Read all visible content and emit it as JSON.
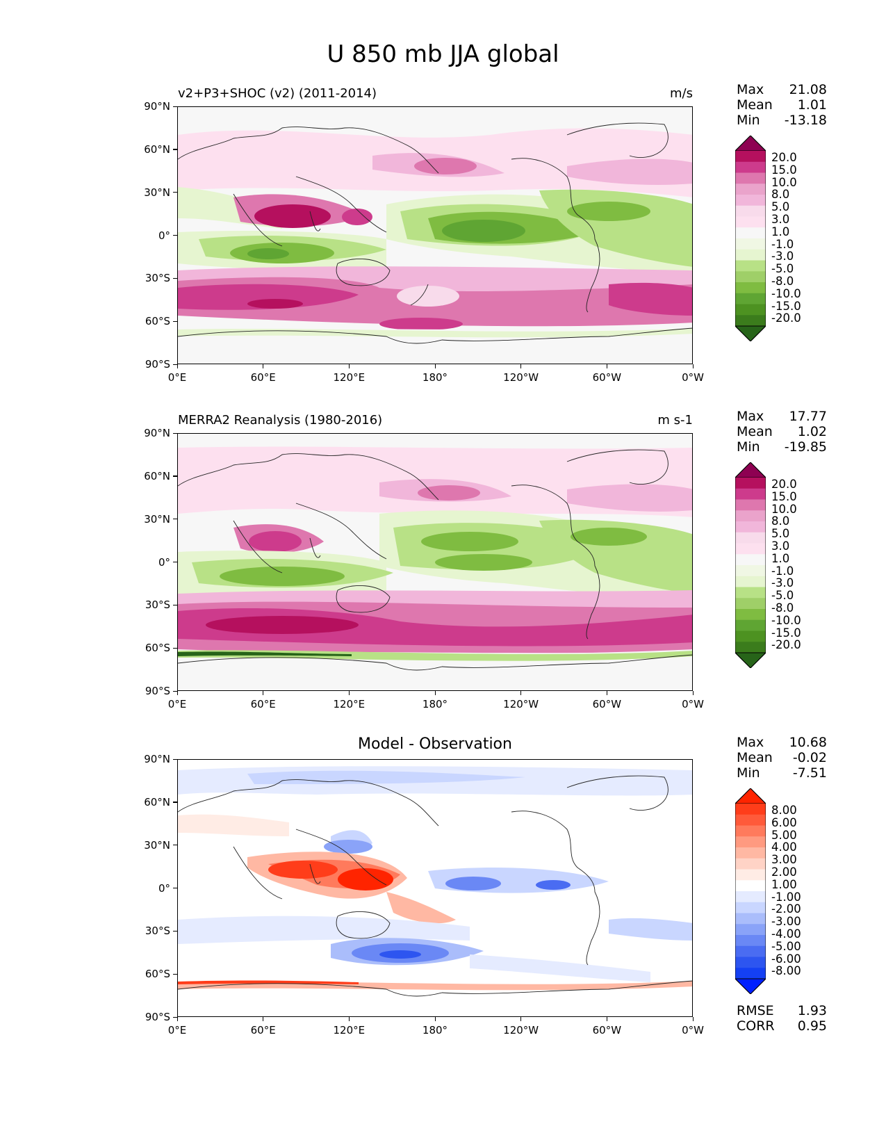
{
  "figure": {
    "title": "U 850 mb JJA global",
    "colors": {
      "border": "#000000",
      "coast": "#222222"
    }
  },
  "axes": {
    "lat_labels": [
      "90°N",
      "60°N",
      "30°N",
      "0°",
      "30°S",
      "60°S",
      "90°S"
    ],
    "lon_labels": [
      "0°E",
      "60°E",
      "120°E",
      "180°",
      "120°W",
      "60°W",
      "0°W"
    ]
  },
  "panels": [
    {
      "id": "test",
      "title": "v2+P3+SHOC (v2) (2011-2014)",
      "units": "m/s",
      "stats": [
        {
          "label": "Max",
          "value": "21.08"
        },
        {
          "label": "Mean",
          "value": "1.01"
        },
        {
          "label": "Min",
          "value": "-13.18"
        }
      ],
      "colorbar": {
        "labels": [
          "20.0",
          "15.0",
          "10.0",
          "8.0",
          "5.0",
          "3.0",
          "1.0",
          "-1.0",
          "-3.0",
          "-5.0",
          "-8.0",
          "-10.0",
          "-15.0",
          "-20.0"
        ],
        "colors": [
          "#8e0152",
          "#b5105e",
          "#cd3b8c",
          "#de77ae",
          "#eaa3cb",
          "#f1b6da",
          "#f8dbeb",
          "#fde0ef",
          "#f7f7f7",
          "#f0f7e4",
          "#e6f5d0",
          "#b8e186",
          "#9fcf68",
          "#7fbc41",
          "#5fa533",
          "#4d9221",
          "#3b7c1c",
          "#276419"
        ]
      },
      "footer": []
    },
    {
      "id": "ref",
      "title": "MERRA2 Reanalysis (1980-2016)",
      "units": "m s-1",
      "stats": [
        {
          "label": "Max",
          "value": "17.77"
        },
        {
          "label": "Mean",
          "value": "1.02"
        },
        {
          "label": "Min",
          "value": "-19.85"
        }
      ],
      "colorbar": {
        "labels": [
          "20.0",
          "15.0",
          "10.0",
          "8.0",
          "5.0",
          "3.0",
          "1.0",
          "-1.0",
          "-3.0",
          "-5.0",
          "-8.0",
          "-10.0",
          "-15.0",
          "-20.0"
        ],
        "colors": [
          "#8e0152",
          "#b5105e",
          "#cd3b8c",
          "#de77ae",
          "#eaa3cb",
          "#f1b6da",
          "#f8dbeb",
          "#fde0ef",
          "#f7f7f7",
          "#f0f7e4",
          "#e6f5d0",
          "#b8e186",
          "#9fcf68",
          "#7fbc41",
          "#5fa533",
          "#4d9221",
          "#3b7c1c",
          "#276419"
        ]
      },
      "footer": []
    },
    {
      "id": "diff",
      "title": "Model - Observation",
      "units": "",
      "stats": [
        {
          "label": "Max",
          "value": "10.68"
        },
        {
          "label": "Mean",
          "value": "-0.02"
        },
        {
          "label": "Min",
          "value": "-7.51"
        }
      ],
      "colorbar": {
        "labels": [
          "8.00",
          "6.00",
          "5.00",
          "4.00",
          "3.00",
          "2.00",
          "1.00",
          "-1.00",
          "-2.00",
          "-3.00",
          "-4.00",
          "-5.00",
          "-6.00",
          "-8.00"
        ],
        "colors": [
          "#ff2400",
          "#ff3d1a",
          "#ff5a3a",
          "#ff7a5c",
          "#ff9a80",
          "#ffb8a3",
          "#ffd3c6",
          "#ffecE5",
          "#ffffff",
          "#e5ebff",
          "#c9d6ff",
          "#aabdfb",
          "#8aa3f8",
          "#6a88f5",
          "#4a6cf2",
          "#2d55f0",
          "#1440f3",
          "#0020ff"
        ]
      },
      "footer": [
        {
          "label": "RMSE",
          "value": "1.93"
        },
        {
          "label": "CORR",
          "value": "0.95"
        }
      ]
    }
  ]
}
